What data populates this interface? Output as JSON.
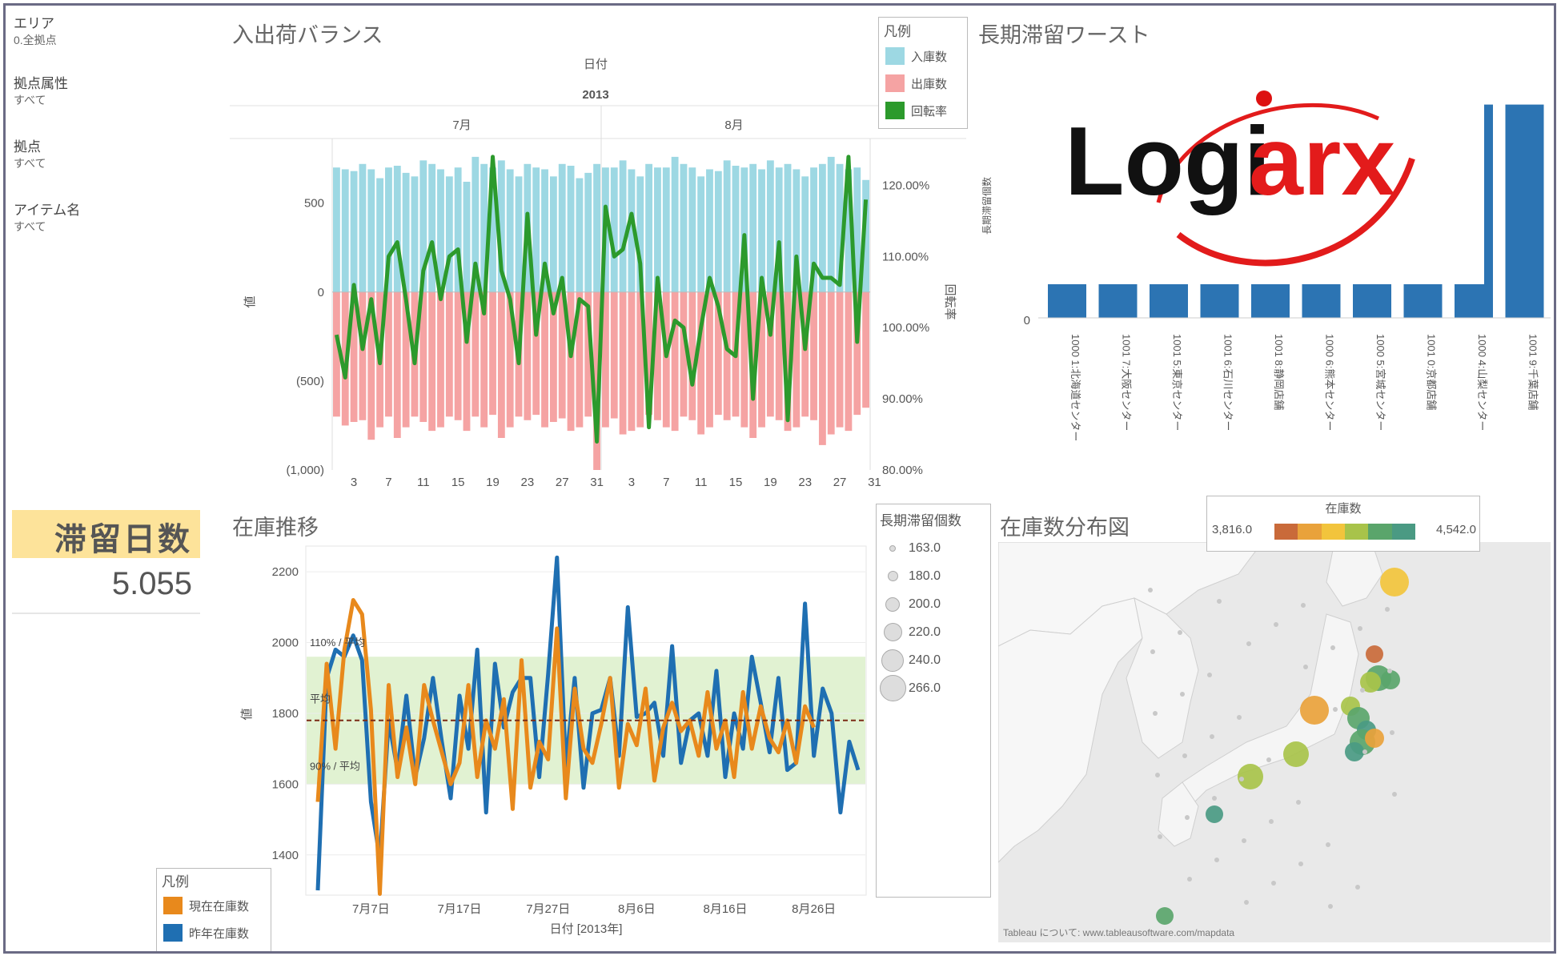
{
  "filters": [
    {
      "label": "エリア",
      "value": "0.全拠点"
    },
    {
      "label": "拠点属性",
      "value": "すべて"
    },
    {
      "label": "拠点",
      "value": "すべて"
    },
    {
      "label": "アイテム名",
      "value": "すべて"
    }
  ],
  "kpi": {
    "label": "滞留日数",
    "value": "5.055"
  },
  "balance": {
    "title": "入出荷バランス",
    "header_field": "日付",
    "header_year": "2013",
    "months": [
      "7月",
      "8月"
    ],
    "y_left_label": "値",
    "y_right_label": "回転率",
    "y_left_ticks": [
      "500",
      "0",
      "(500)",
      "(1,000)"
    ],
    "y_right_ticks": [
      "120.00%",
      "110.00%",
      "100.00%",
      "90.00%",
      "80.00%"
    ],
    "x_ticks": [
      "3",
      "7",
      "11",
      "15",
      "19",
      "23",
      "27",
      "31",
      "3",
      "7",
      "11",
      "15",
      "19",
      "23",
      "27",
      "31"
    ],
    "legend_title": "凡例",
    "legend": [
      {
        "label": "入庫数",
        "color": "#9dd8e3"
      },
      {
        "label": "出庫数",
        "color": "#f5a3a3"
      },
      {
        "label": "回転率",
        "color": "#2c9a2c"
      }
    ]
  },
  "worst": {
    "title": "長期滞留ワースト",
    "y_label": "長期滞留個数",
    "y_ticks": [
      "0"
    ],
    "bar_color": "#2c74b3",
    "categories": [
      "1000 1:北海道センター",
      "1001 7:大阪センター",
      "1001 5:東京センター",
      "1001 6:石川センター",
      "1001 8:静岡店舗",
      "1000 6:熊本センター",
      "1000 5:宮城センター",
      "1001 0:京都店舗",
      "1000 4:山梨センター",
      "1001 9:千葉店舗"
    ],
    "logo_text_a": "Logi",
    "logo_text_b": "arx"
  },
  "inventory": {
    "title": "在庫推移",
    "y_label": "値",
    "y_ticks": [
      "2200",
      "2000",
      "1800",
      "1600",
      "1400"
    ],
    "x_ticks": [
      "7月7日",
      "7月17日",
      "7月27日",
      "8月6日",
      "8月16日",
      "8月26日"
    ],
    "x_label": "日付 [2013年]",
    "ref_labels": [
      "110% / 平均",
      "平均",
      "90% / 平均"
    ],
    "legend_title": "凡例",
    "legend": [
      {
        "label": "現在在庫数",
        "color": "#e8891c"
      },
      {
        "label": "昨年在庫数",
        "color": "#1f6fb2"
      }
    ]
  },
  "size_legend": {
    "title": "長期滞留個数",
    "items": [
      "163.0",
      "180.0",
      "200.0",
      "220.0",
      "240.0",
      "266.0"
    ]
  },
  "map": {
    "title": "在庫数分布図",
    "color_title": "在庫数",
    "range_min": "3,816.0",
    "range_max": "4,542.0",
    "gradient": [
      "#c96a3a",
      "#e9a23b",
      "#f2c43c",
      "#a8c34a",
      "#5aa56b",
      "#4a9a83"
    ],
    "attribution": "Tableau について: www.tableausoftware.com/mapdata"
  },
  "chart_data": [
    {
      "type": "bar",
      "title": "入出荷バランス",
      "x": [
        1,
        2,
        3,
        4,
        5,
        6,
        7,
        8,
        9,
        10,
        11,
        12,
        13,
        14,
        15,
        16,
        17,
        18,
        19,
        20,
        21,
        22,
        23,
        24,
        25,
        26,
        27,
        28,
        29,
        30,
        31,
        32,
        33,
        34,
        35,
        36,
        37,
        38,
        39,
        40,
        41,
        42,
        43,
        44,
        45,
        46,
        47,
        48,
        49,
        50,
        51,
        52,
        53,
        54,
        55,
        56,
        57,
        58,
        59,
        60,
        61,
        62
      ],
      "series": [
        {
          "name": "入庫数",
          "values": [
            700,
            690,
            680,
            720,
            690,
            640,
            700,
            710,
            670,
            650,
            740,
            720,
            690,
            650,
            700,
            620,
            760,
            720,
            700,
            740,
            690,
            650,
            720,
            700,
            690,
            650,
            720,
            710,
            640,
            670,
            720,
            700,
            700,
            740,
            690,
            650,
            720,
            700,
            700,
            760,
            720,
            700,
            650,
            690,
            680,
            740,
            710,
            700,
            720,
            690,
            740,
            700,
            720,
            690,
            650,
            700,
            720,
            760,
            720,
            690,
            700,
            630
          ]
        },
        {
          "name": "出庫数",
          "values": [
            -700,
            -750,
            -730,
            -720,
            -830,
            -760,
            -700,
            -820,
            -760,
            -700,
            -730,
            -780,
            -760,
            -700,
            -720,
            -780,
            -700,
            -760,
            -690,
            -820,
            -760,
            -700,
            -720,
            -690,
            -760,
            -730,
            -710,
            -780,
            -760,
            -700,
            -1000,
            -760,
            -710,
            -800,
            -780,
            -760,
            -690,
            -720,
            -760,
            -780,
            -700,
            -720,
            -800,
            -760,
            -690,
            -720,
            -700,
            -760,
            -820,
            -760,
            -700,
            -720,
            -780,
            -760,
            -700,
            -720,
            -860,
            -800,
            -760,
            -780,
            -690,
            -650
          ]
        },
        {
          "name": "回転率",
          "values": [
            99,
            93,
            106,
            97,
            104,
            95,
            110,
            112,
            104,
            95,
            108,
            112,
            104,
            110,
            111,
            98,
            109,
            102,
            124,
            108,
            104,
            95,
            116,
            99,
            109,
            102,
            107,
            96,
            104,
            103,
            84,
            117,
            110,
            111,
            116,
            109,
            86,
            107,
            96,
            101,
            100,
            92,
            100,
            107,
            103,
            97,
            96,
            113,
            90,
            107,
            99,
            112,
            87,
            110,
            97,
            109,
            107,
            107,
            106,
            124,
            98,
            118
          ]
        }
      ],
      "ylim": [
        -1000,
        800
      ],
      "y2lim": [
        80,
        125
      ]
    },
    {
      "type": "bar",
      "title": "長期滞留ワースト",
      "categories": [
        "1000 1:北海道センター",
        "1001 7:大阪センター",
        "1001 5:東京センター",
        "1001 6:石川センター",
        "1001 8:静岡店舗",
        "1000 6:熊本センター",
        "1000 5:宮城センター",
        "1001 0:京都店舗",
        "1000 4:山梨センター",
        "1001 9:千葉店舗"
      ],
      "values": [
        60,
        60,
        60,
        60,
        60,
        60,
        60,
        60,
        370,
        370
      ]
    },
    {
      "type": "line",
      "title": "在庫推移",
      "x": [
        1,
        2,
        3,
        4,
        5,
        6,
        7,
        8,
        9,
        10,
        11,
        12,
        13,
        14,
        15,
        16,
        17,
        18,
        19,
        20,
        21,
        22,
        23,
        24,
        25,
        26,
        27,
        28,
        29,
        30,
        31,
        32,
        33,
        34,
        35,
        36,
        37,
        38,
        39,
        40,
        41,
        42,
        43,
        44,
        45,
        46,
        47,
        48,
        49,
        50,
        51,
        52,
        53,
        54,
        55,
        56,
        57,
        58,
        59,
        60,
        61,
        62
      ],
      "series": [
        {
          "name": "昨年在庫数",
          "values": [
            1300,
            1900,
            1980,
            1960,
            2020,
            1950,
            1550,
            1390,
            1780,
            1640,
            1850,
            1620,
            1730,
            1900,
            1720,
            1560,
            1850,
            1700,
            1980,
            1520,
            1940,
            1760,
            1860,
            1900,
            1900,
            1620,
            1910,
            2240,
            1650,
            1900,
            1590,
            1800,
            1810,
            1900,
            1680,
            2100,
            1790,
            1800,
            1830,
            1680,
            1990,
            1660,
            1780,
            1800,
            1680,
            1920,
            1620,
            1800,
            1700,
            1960,
            1830,
            1690,
            1900,
            1640,
            1660,
            2110,
            1680,
            1870,
            1800,
            1520,
            1720,
            1640
          ]
        },
        {
          "name": "現在在庫数",
          "values": [
            1550,
            1940,
            1700,
            1980,
            2120,
            2080,
            1810,
            1290,
            1880,
            1620,
            1760,
            1600,
            1880,
            1780,
            1690,
            1600,
            1660,
            1880,
            1620,
            1780,
            1700,
            1840,
            1530,
            1950,
            1590,
            1720,
            1670,
            2040,
            1560,
            1870,
            1700,
            1660,
            1770,
            1900,
            1590,
            1770,
            1710,
            1870,
            1610,
            1760,
            1830,
            1750,
            1780,
            1680,
            1860,
            1700,
            1780,
            1620,
            1860,
            1700,
            1820,
            1730,
            1690,
            1780,
            1660,
            1820,
            1760,
            1700,
            1740,
            1780,
            1760,
            1770
          ]
        }
      ],
      "ylim": [
        1300,
        2250
      ],
      "xlabel": "日付 [2013年]",
      "ylabel": "値"
    }
  ]
}
